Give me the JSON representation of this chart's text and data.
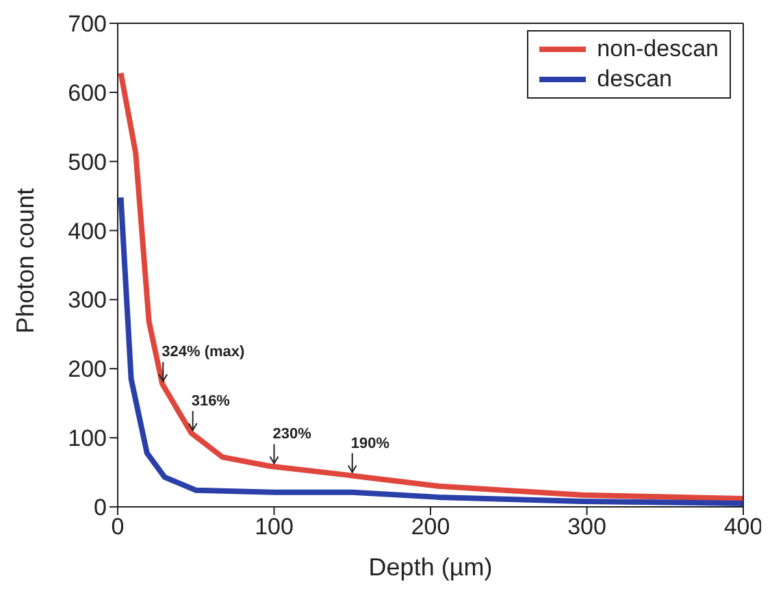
{
  "chart_data": {
    "type": "line",
    "xlabel": "Depth (µm)",
    "ylabel": "Photon count",
    "xlim": [
      0,
      400
    ],
    "xticks": [
      0,
      100,
      200,
      300,
      400
    ],
    "ylim": [
      0,
      700
    ],
    "yticks": [
      0,
      100,
      200,
      300,
      400,
      500,
      600,
      700
    ],
    "grid": false,
    "legend": "top right",
    "marker": "none",
    "line_style": "solid",
    "series": [
      {
        "name": "non-descan",
        "color": "#e0473c",
        "x": [
          2,
          11.5,
          20,
          28.5,
          47,
          67,
          97,
          147,
          205,
          297,
          400
        ],
        "values": [
          628,
          512,
          268,
          178,
          107,
          72,
          59,
          46,
          30,
          17,
          12
        ]
      },
      {
        "name": "descan",
        "color": "#2a3fa8",
        "x": [
          2,
          8.6,
          18.7,
          30,
          50,
          100,
          150,
          205,
          297,
          400
        ],
        "values": [
          448,
          185,
          78,
          43,
          24,
          21,
          21,
          14,
          8,
          5
        ]
      }
    ],
    "annotations": [
      {
        "text": "324% (max)",
        "x": 29,
        "y": 178
      },
      {
        "text": "316%",
        "x": 48,
        "y": 107
      },
      {
        "text": "230%",
        "x": 100,
        "y": 59
      },
      {
        "text": "190%",
        "x": 150,
        "y": 46
      }
    ]
  }
}
